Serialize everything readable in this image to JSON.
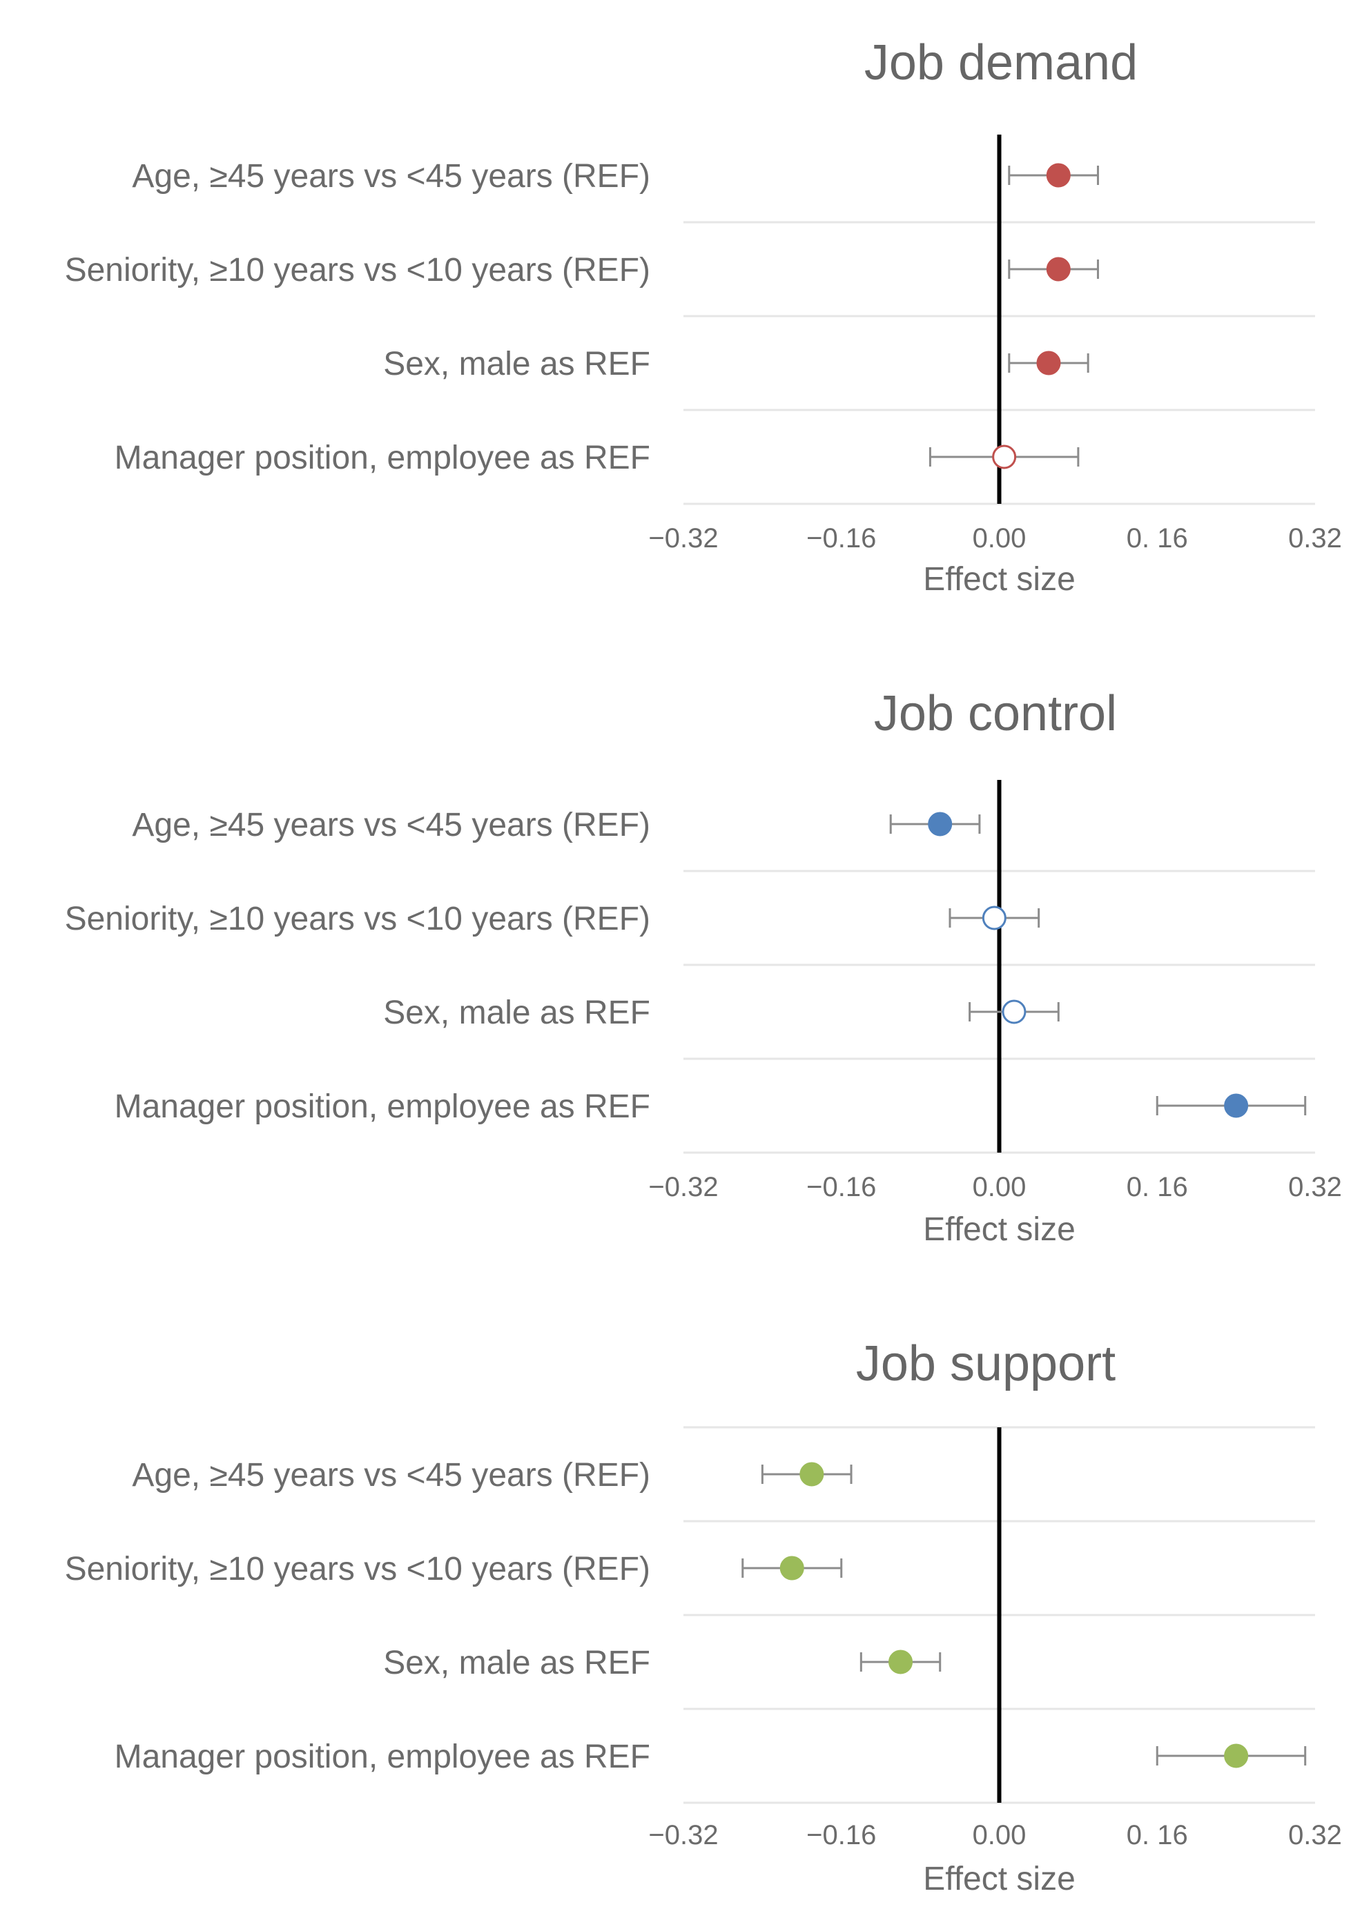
{
  "chart_data": [
    {
      "type": "scatter",
      "title": "Job demand",
      "xlabel": "Effect size",
      "ylabel": "",
      "xlim": [
        -0.32,
        0.32
      ],
      "ticks": [
        -0.32,
        -0.16,
        0.0,
        0.16,
        0.32
      ],
      "tick_labels": [
        "−0.32",
        "−0.16",
        "0.00",
        "0. 16",
        "0.32"
      ],
      "color": "#c0504d",
      "categories": [
        "Age, ≥45 years vs <45 years (REF)",
        "Seniority, ≥10 years vs <10 years (REF)",
        "Sex, male as REF",
        "Manager position, employee as REF"
      ],
      "values": [
        0.06,
        0.06,
        0.05,
        0.005
      ],
      "ci_low": [
        0.01,
        0.01,
        0.01,
        -0.07
      ],
      "ci_high": [
        0.1,
        0.1,
        0.09,
        0.08
      ],
      "significant": [
        true,
        true,
        true,
        false
      ]
    },
    {
      "type": "scatter",
      "title": "Job control",
      "xlabel": "Effect size",
      "ylabel": "",
      "xlim": [
        -0.32,
        0.32
      ],
      "ticks": [
        -0.32,
        -0.16,
        0.0,
        0.16,
        0.32
      ],
      "tick_labels": [
        "−0.32",
        "−0.16",
        "0.00",
        "0. 16",
        "0.32"
      ],
      "color": "#4f81bd",
      "categories": [
        "Age, ≥45 years vs <45 years (REF)",
        "Seniority, ≥10 years vs <10 years (REF)",
        "Sex, male as REF",
        "Manager position, employee as REF"
      ],
      "values": [
        -0.06,
        -0.005,
        0.015,
        0.24
      ],
      "ci_low": [
        -0.11,
        -0.05,
        -0.03,
        0.16
      ],
      "ci_high": [
        -0.02,
        0.04,
        0.06,
        0.31
      ],
      "significant": [
        true,
        false,
        false,
        true
      ]
    },
    {
      "type": "scatter",
      "title": "Job support",
      "xlabel": "Effect size",
      "ylabel": "",
      "xlim": [
        -0.32,
        0.32
      ],
      "ticks": [
        -0.32,
        -0.16,
        0.0,
        0.16,
        0.32
      ],
      "tick_labels": [
        "−0.32",
        "−0.16",
        "0.00",
        "0. 16",
        "0.32"
      ],
      "color": "#9bbb59",
      "categories": [
        "Age, ≥45 years vs <45 years (REF)",
        "Seniority, ≥10 years vs <10 years (REF)",
        "Sex, male as REF",
        "Manager position, employee as REF"
      ],
      "values": [
        -0.19,
        -0.21,
        -0.1,
        0.24
      ],
      "ci_low": [
        -0.24,
        -0.26,
        -0.14,
        0.16
      ],
      "ci_high": [
        -0.15,
        -0.16,
        -0.06,
        0.31
      ],
      "significant": [
        true,
        true,
        true,
        true
      ]
    }
  ]
}
